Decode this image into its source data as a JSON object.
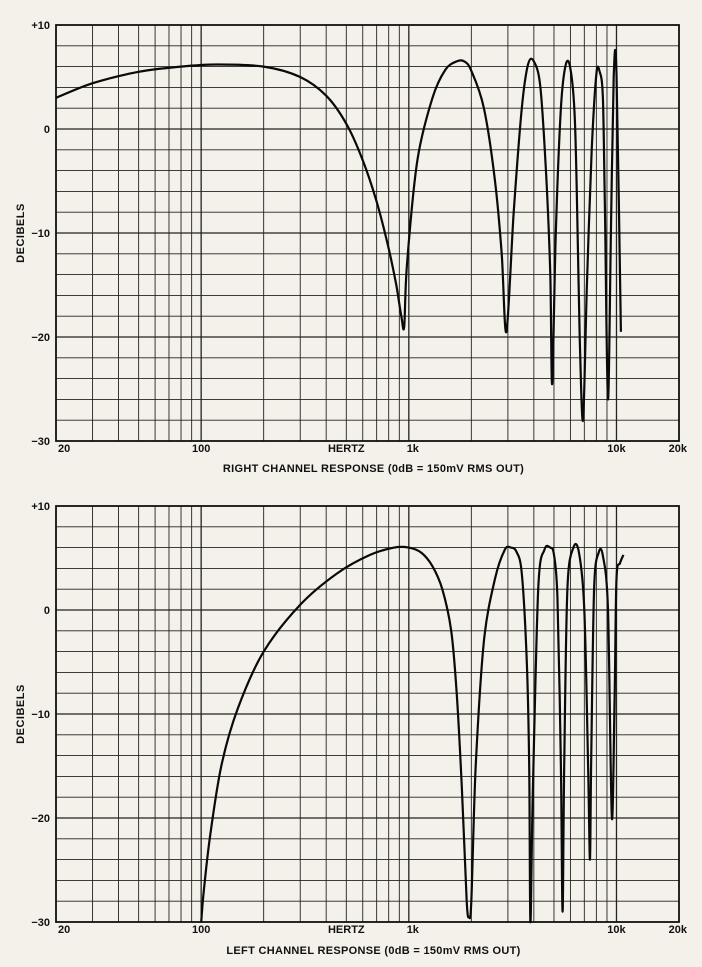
{
  "chart_data": [
    {
      "type": "line",
      "title": "",
      "ylabel": "DECIBELS",
      "xlabel": "HERTZ",
      "caption": "RIGHT CHANNEL RESPONSE  (0dB  =  150mV RMS OUT)",
      "x_scale": "log",
      "xlim": [
        20,
        20000
      ],
      "ylim": [
        -30,
        10
      ],
      "grid": true,
      "x_tick_labels": [
        {
          "v": 20,
          "t": "20"
        },
        {
          "v": 100,
          "t": "100"
        },
        {
          "v": 1000,
          "t": "1k"
        },
        {
          "v": 10000,
          "t": "10k"
        },
        {
          "v": 20000,
          "t": "20k"
        }
      ],
      "y_tick_labels": [
        {
          "v": 10,
          "t": "+10"
        },
        {
          "v": 0,
          "t": "0"
        },
        {
          "v": -10,
          "t": "−10"
        },
        {
          "v": -20,
          "t": "−20"
        },
        {
          "v": -30,
          "t": "−30"
        }
      ],
      "series": [
        {
          "x": [
            20,
            30,
            50,
            80,
            120,
            200,
            300,
            400,
            500,
            600,
            700,
            800,
            870,
            920,
            950,
            980,
            1100,
            1300,
            1500,
            1700,
            1850,
            2000,
            2300,
            2600,
            2800,
            2950,
            3200,
            3500,
            3750,
            4000,
            4300,
            4600,
            4800,
            4900,
            5100,
            5400,
            5700,
            6000,
            6300,
            6500,
            6650,
            6900,
            7200,
            7600,
            8000,
            8300,
            8600,
            8800,
            9100,
            9400,
            9700,
            10000,
            10500
          ],
          "y": [
            3,
            4.4,
            5.5,
            6,
            6.2,
            6,
            5,
            3.2,
            0.5,
            -3,
            -7,
            -11.5,
            -15,
            -18,
            -19,
            -13,
            -3,
            3,
            5.7,
            6.5,
            6.5,
            5.6,
            2,
            -5,
            -12,
            -19.5,
            -8,
            2,
            6.2,
            6.5,
            4,
            -5,
            -14,
            -24.5,
            -10,
            2,
            6.2,
            5.8,
            1,
            -10,
            -20,
            -28,
            -15,
            -2,
            5.3,
            5.5,
            3,
            -8,
            -26,
            -10,
            5,
            5.3,
            -19.5
          ]
        }
      ]
    },
    {
      "type": "line",
      "title": "",
      "ylabel": "DECIBELS",
      "xlabel": "HERTZ",
      "caption": "LEFT CHANNEL RESPONSE  (0dB  =  150mV RMS OUT)",
      "x_scale": "log",
      "xlim": [
        20,
        20000
      ],
      "ylim": [
        -30,
        10
      ],
      "grid": true,
      "x_tick_labels": [
        {
          "v": 20,
          "t": "20"
        },
        {
          "v": 100,
          "t": "100"
        },
        {
          "v": 1000,
          "t": "1k"
        },
        {
          "v": 10000,
          "t": "10k"
        },
        {
          "v": 20000,
          "t": "20k"
        }
      ],
      "y_tick_labels": [
        {
          "v": 10,
          "t": "+10"
        },
        {
          "v": 0,
          "t": "0"
        },
        {
          "v": -10,
          "t": "−10"
        },
        {
          "v": -20,
          "t": "−20"
        },
        {
          "v": -30,
          "t": "−30"
        }
      ],
      "series": [
        {
          "x": [
            100,
            103,
            110,
            125,
            150,
            200,
            300,
            450,
            650,
            850,
            1000,
            1150,
            1300,
            1450,
            1600,
            1700,
            1800,
            1900,
            1950,
            2000,
            2100,
            2300,
            2600,
            2900,
            3100,
            3300,
            3500,
            3700,
            3800,
            3850,
            3950,
            4200,
            4500,
            4800,
            5000,
            5200,
            5400,
            5500,
            5600,
            5800,
            6200,
            6600,
            7000,
            7300,
            7450,
            7550,
            7800,
            8200,
            8600,
            9100,
            9500,
            9800,
            10000,
            10400,
            10800
          ],
          "y": [
            -30,
            -27,
            -22,
            -15,
            -9.5,
            -4,
            0.5,
            3.5,
            5.3,
            6,
            6,
            5.5,
            4.2,
            2,
            -2,
            -8,
            -17,
            -28,
            -29.5,
            -28,
            -15,
            -3,
            3,
            5.8,
            6,
            5.6,
            3.5,
            -5,
            -15,
            -30,
            -18,
            2,
            5.8,
            6,
            5.3,
            1,
            -15,
            -29,
            -15,
            2,
            6,
            5.5,
            0,
            -15,
            -24,
            -15,
            2,
            5.5,
            5.2,
            0,
            -20,
            -8,
            3,
            4.5,
            5.3
          ]
        }
      ]
    }
  ]
}
